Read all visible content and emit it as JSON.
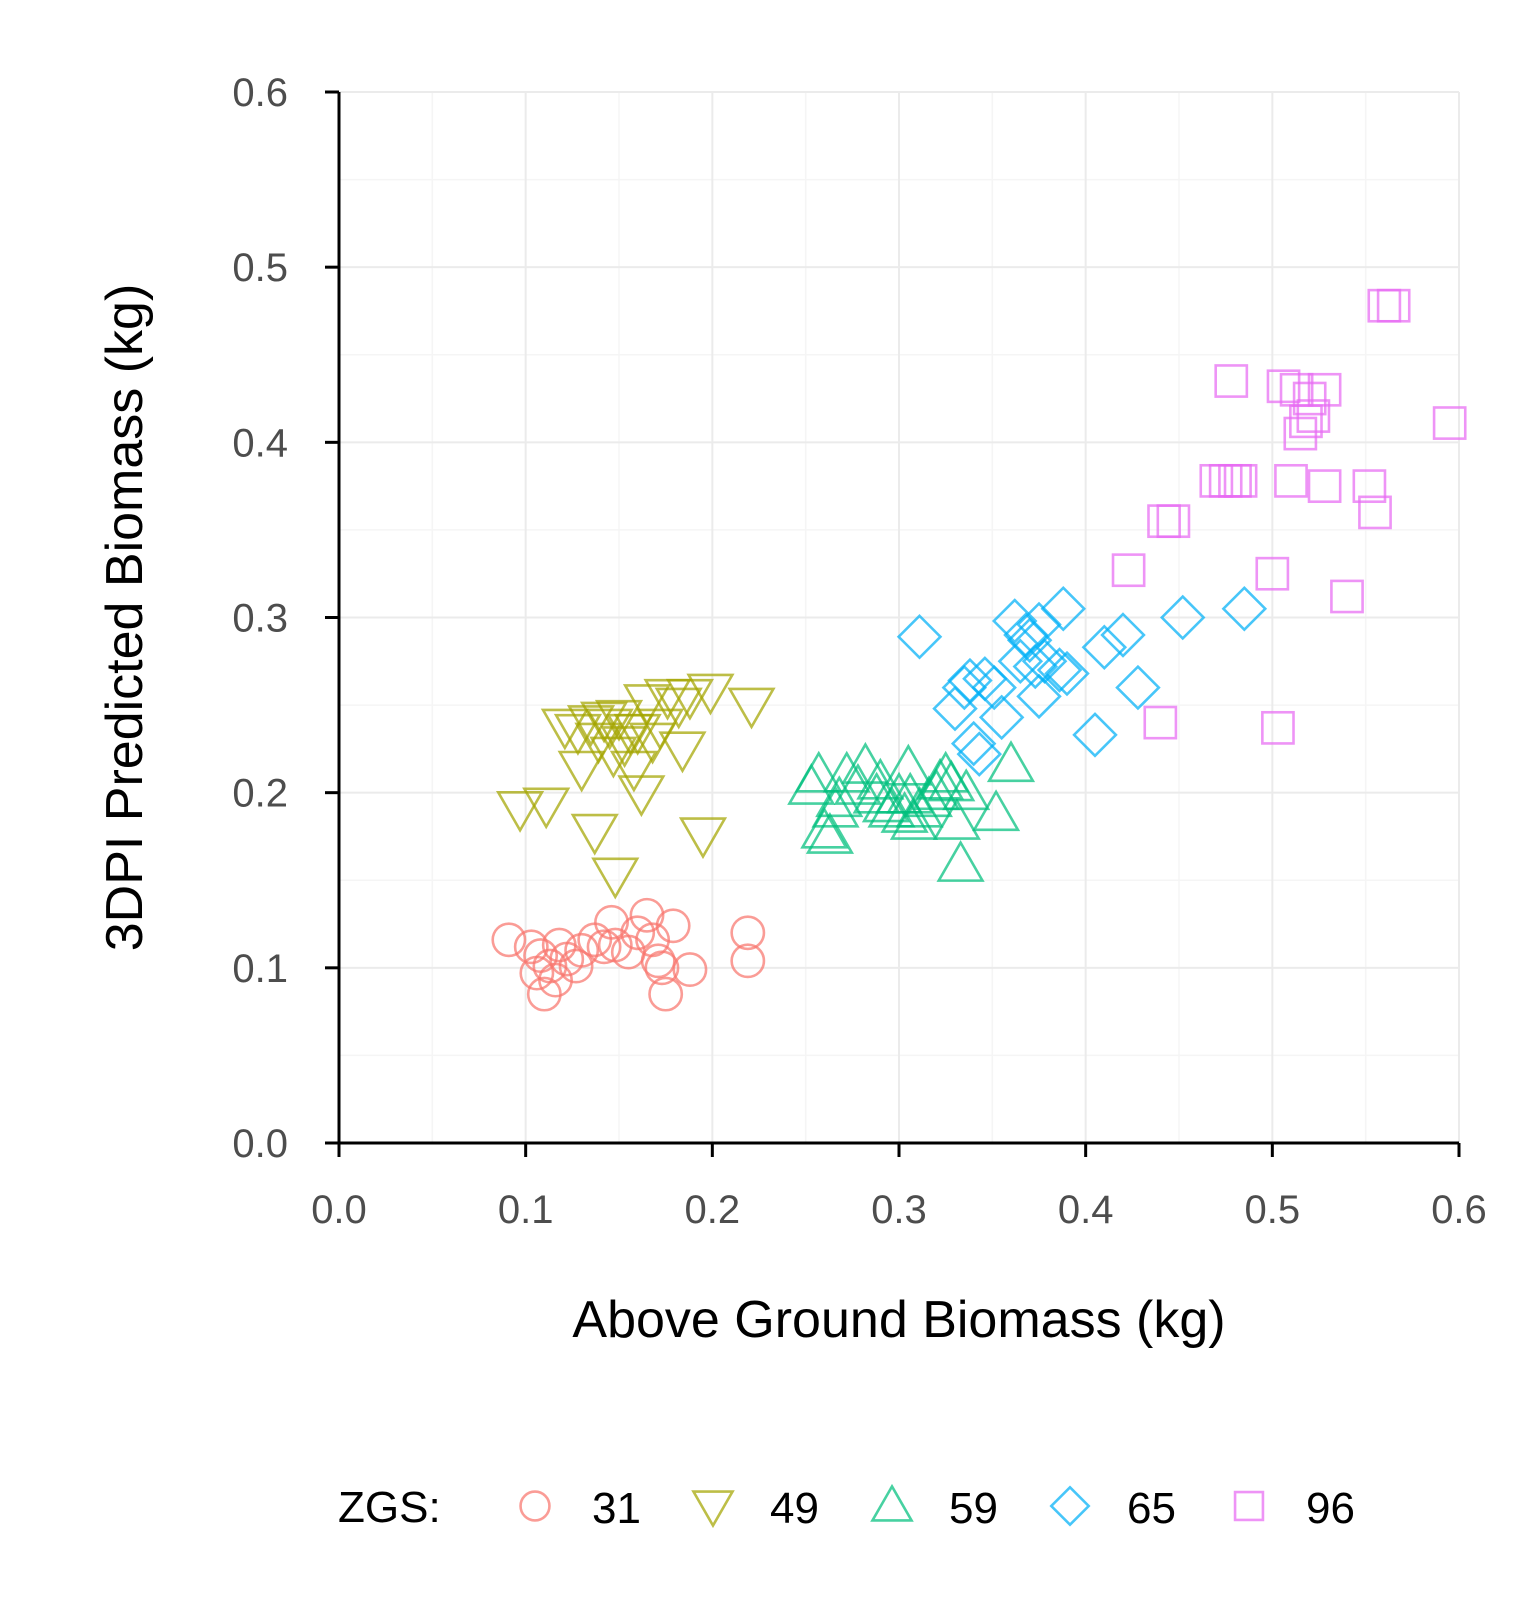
{
  "chart_data": {
    "type": "scatter",
    "xlabel": "Above Ground Biomass (kg)",
    "ylabel": "3DPI Predicted Biomass (kg)",
    "xlim": [
      0,
      0.6
    ],
    "ylim": [
      0,
      0.6
    ],
    "xticks": [
      "0.0",
      "0.1",
      "0.2",
      "0.3",
      "0.4",
      "0.5",
      "0.6"
    ],
    "yticks": [
      "0.0",
      "0.1",
      "0.2",
      "0.3",
      "0.4",
      "0.5",
      "0.6"
    ],
    "grid": true,
    "legend": {
      "title": "ZGS:",
      "position": "bottom"
    },
    "series": [
      {
        "name": "31",
        "shape": "circle",
        "color": "#F8766D",
        "points": [
          [
            0.091,
            0.116
          ],
          [
            0.103,
            0.112
          ],
          [
            0.106,
            0.097
          ],
          [
            0.108,
            0.107
          ],
          [
            0.11,
            0.085
          ],
          [
            0.113,
            0.101
          ],
          [
            0.116,
            0.093
          ],
          [
            0.118,
            0.113
          ],
          [
            0.122,
            0.105
          ],
          [
            0.127,
            0.101
          ],
          [
            0.13,
            0.11
          ],
          [
            0.137,
            0.116
          ],
          [
            0.142,
            0.112
          ],
          [
            0.146,
            0.126
          ],
          [
            0.148,
            0.113
          ],
          [
            0.155,
            0.109
          ],
          [
            0.16,
            0.12
          ],
          [
            0.165,
            0.13
          ],
          [
            0.168,
            0.116
          ],
          [
            0.171,
            0.104
          ],
          [
            0.173,
            0.1
          ],
          [
            0.175,
            0.085
          ],
          [
            0.179,
            0.124
          ],
          [
            0.188,
            0.099
          ],
          [
            0.219,
            0.12
          ],
          [
            0.219,
            0.104
          ]
        ]
      },
      {
        "name": "49",
        "shape": "triangle-down",
        "color": "#A3A500",
        "points": [
          [
            0.097,
            0.191
          ],
          [
            0.111,
            0.193
          ],
          [
            0.121,
            0.238
          ],
          [
            0.128,
            0.235
          ],
          [
            0.13,
            0.214
          ],
          [
            0.135,
            0.24
          ],
          [
            0.137,
            0.178
          ],
          [
            0.139,
            0.23
          ],
          [
            0.142,
            0.242
          ],
          [
            0.145,
            0.238
          ],
          [
            0.147,
            0.222
          ],
          [
            0.148,
            0.153
          ],
          [
            0.15,
            0.243
          ],
          [
            0.153,
            0.228
          ],
          [
            0.156,
            0.235
          ],
          [
            0.158,
            0.214
          ],
          [
            0.16,
            0.235
          ],
          [
            0.162,
            0.2
          ],
          [
            0.165,
            0.252
          ],
          [
            0.168,
            0.23
          ],
          [
            0.172,
            0.238
          ],
          [
            0.176,
            0.255
          ],
          [
            0.182,
            0.25
          ],
          [
            0.184,
            0.225
          ],
          [
            0.188,
            0.255
          ],
          [
            0.195,
            0.176
          ],
          [
            0.199,
            0.258
          ],
          [
            0.221,
            0.25
          ]
        ]
      },
      {
        "name": "59",
        "shape": "triangle-up",
        "color": "#00BF7D",
        "points": [
          [
            0.253,
            0.203
          ],
          [
            0.257,
            0.21
          ],
          [
            0.26,
            0.178
          ],
          [
            0.263,
            0.175
          ],
          [
            0.266,
            0.19
          ],
          [
            0.268,
            0.196
          ],
          [
            0.272,
            0.21
          ],
          [
            0.278,
            0.203
          ],
          [
            0.282,
            0.215
          ],
          [
            0.288,
            0.198
          ],
          [
            0.29,
            0.206
          ],
          [
            0.293,
            0.193
          ],
          [
            0.296,
            0.19
          ],
          [
            0.3,
            0.198
          ],
          [
            0.303,
            0.187
          ],
          [
            0.305,
            0.214
          ],
          [
            0.306,
            0.198
          ],
          [
            0.308,
            0.183
          ],
          [
            0.311,
            0.19
          ],
          [
            0.316,
            0.196
          ],
          [
            0.32,
            0.2
          ],
          [
            0.322,
            0.206
          ],
          [
            0.325,
            0.21
          ],
          [
            0.328,
            0.205
          ],
          [
            0.331,
            0.183
          ],
          [
            0.333,
            0.159
          ],
          [
            0.336,
            0.2
          ],
          [
            0.352,
            0.188
          ],
          [
            0.36,
            0.216
          ]
        ]
      },
      {
        "name": "65",
        "shape": "diamond",
        "color": "#00B0F6",
        "points": [
          [
            0.311,
            0.289
          ],
          [
            0.33,
            0.248
          ],
          [
            0.335,
            0.26
          ],
          [
            0.338,
            0.264
          ],
          [
            0.34,
            0.228
          ],
          [
            0.343,
            0.222
          ],
          [
            0.346,
            0.265
          ],
          [
            0.351,
            0.26
          ],
          [
            0.355,
            0.243
          ],
          [
            0.362,
            0.298
          ],
          [
            0.365,
            0.275
          ],
          [
            0.368,
            0.29
          ],
          [
            0.37,
            0.287
          ],
          [
            0.373,
            0.272
          ],
          [
            0.375,
            0.296
          ],
          [
            0.375,
            0.255
          ],
          [
            0.378,
            0.275
          ],
          [
            0.386,
            0.27
          ],
          [
            0.388,
            0.305
          ],
          [
            0.39,
            0.268
          ],
          [
            0.405,
            0.233
          ],
          [
            0.41,
            0.283
          ],
          [
            0.42,
            0.29
          ],
          [
            0.428,
            0.26
          ],
          [
            0.452,
            0.3
          ],
          [
            0.485,
            0.305
          ]
        ]
      },
      {
        "name": "96",
        "shape": "square",
        "color": "#E76BF3",
        "points": [
          [
            0.423,
            0.327
          ],
          [
            0.44,
            0.24
          ],
          [
            0.442,
            0.355
          ],
          [
            0.447,
            0.355
          ],
          [
            0.47,
            0.378
          ],
          [
            0.475,
            0.378
          ],
          [
            0.478,
            0.435
          ],
          [
            0.48,
            0.378
          ],
          [
            0.483,
            0.378
          ],
          [
            0.5,
            0.325
          ],
          [
            0.503,
            0.237
          ],
          [
            0.506,
            0.432
          ],
          [
            0.51,
            0.378
          ],
          [
            0.513,
            0.43
          ],
          [
            0.515,
            0.405
          ],
          [
            0.518,
            0.412
          ],
          [
            0.52,
            0.425
          ],
          [
            0.522,
            0.415
          ],
          [
            0.528,
            0.43
          ],
          [
            0.528,
            0.375
          ],
          [
            0.54,
            0.312
          ],
          [
            0.552,
            0.375
          ],
          [
            0.555,
            0.36
          ],
          [
            0.56,
            0.478
          ],
          [
            0.565,
            0.478
          ],
          [
            0.595,
            0.411
          ]
        ]
      }
    ]
  }
}
